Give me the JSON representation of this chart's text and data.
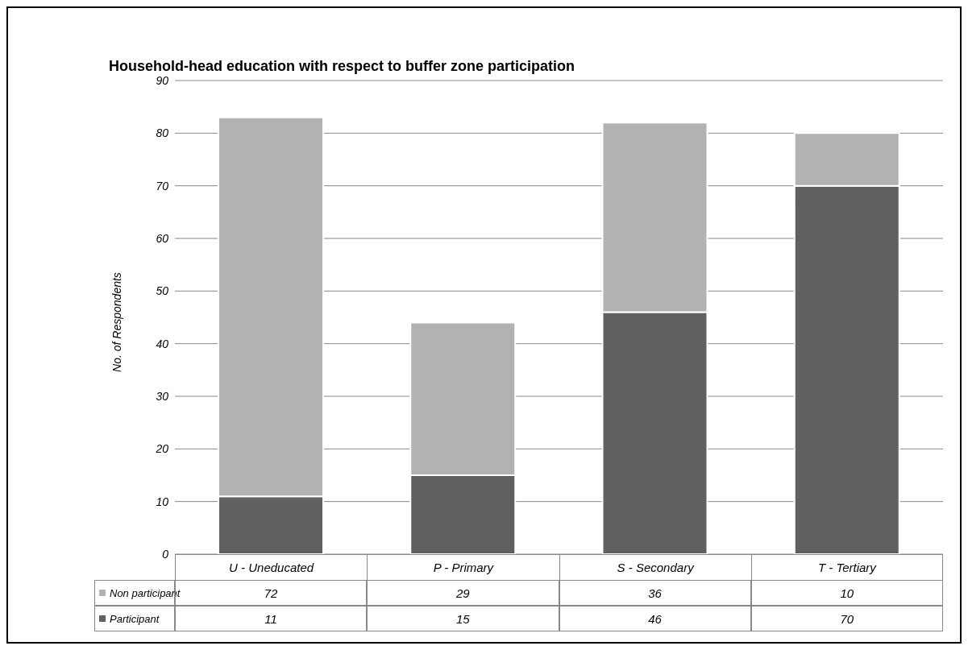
{
  "chart_data": {
    "type": "bar",
    "stacked": true,
    "title": "Household-head education with respect to buffer zone participation",
    "ylabel": "No. of Respondents",
    "categories": [
      "U - Uneducated",
      "P - Primary",
      "S - Secondary",
      "T - Tertiary"
    ],
    "series": [
      {
        "name": "Participant",
        "color": "#606060",
        "values": [
          11,
          15,
          46,
          70
        ]
      },
      {
        "name": "Non participant",
        "color": "#b2b2b2",
        "values": [
          72,
          29,
          36,
          10
        ]
      }
    ],
    "ylim": [
      0,
      90
    ],
    "yticks": [
      0,
      10,
      20,
      30,
      40,
      50,
      60,
      70,
      80,
      90
    ],
    "grid": "y",
    "legend": "bottom",
    "data_labels": true
  }
}
